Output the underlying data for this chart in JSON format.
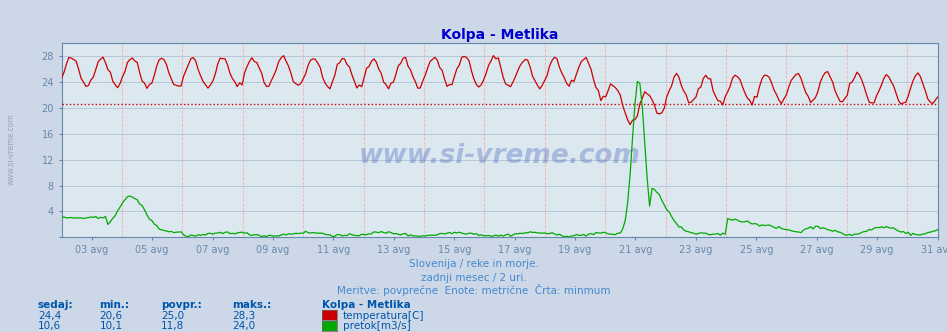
{
  "title": "Kolpa - Metlika",
  "title_color": "#0000cc",
  "bg_color": "#ccd8e8",
  "plot_bg_color": "#dce8f0",
  "temp_color": "#cc0000",
  "flow_color": "#00aa00",
  "avg_line_color": "#cc0000",
  "yticks": [
    0,
    4,
    8,
    12,
    16,
    20,
    24,
    28
  ],
  "ylim": [
    0,
    30
  ],
  "temp_avg": 20.6,
  "subtitle1": "Slovenija / reke in morje.",
  "subtitle2": "zadnji mesec / 2 uri.",
  "subtitle3": "Meritve: povprečne  Enote: metrične  Črta: minmum",
  "subtitle_color": "#4488cc",
  "legend_title": "Kolpa - Metlika",
  "legend_temp_label": "temperatura[C]",
  "legend_flow_label": "pretok[m3/s]",
  "stats_headers": [
    "sedaj:",
    "min.:",
    "povpr.:",
    "maks.:"
  ],
  "stats_temp": [
    "24,4",
    "20,6",
    "25,0",
    "28,3"
  ],
  "stats_flow": [
    "10,6",
    "10,1",
    "11,8",
    "24,0"
  ],
  "xticklabels": [
    "03 avg",
    "05 avg",
    "07 avg",
    "09 avg",
    "11 avg",
    "13 avg",
    "15 avg",
    "17 avg",
    "19 avg",
    "21 avg",
    "23 avg",
    "25 avg",
    "27 avg",
    "29 avg",
    "31 avg"
  ],
  "n_points": 360,
  "watermark": "www.si-vreme.com"
}
